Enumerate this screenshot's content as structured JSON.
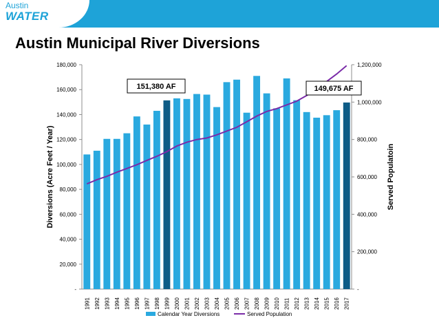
{
  "brand": {
    "line1": "Austin",
    "line2": "WATER"
  },
  "slide_title": "Austin Municipal River Diversions",
  "colors": {
    "bar": "#2aa9df",
    "bar_highlight": "#0e5c86",
    "line": "#7a2ba8",
    "header": "#1ea3d8"
  },
  "chart_data": {
    "type": "bar",
    "title": "",
    "ylabel": "Diversions (Acre Feet / Year)",
    "y2label": "Served Populatoin",
    "categories": [
      "1991",
      "1992",
      "1993",
      "1994",
      "1995",
      "1996",
      "1997",
      "1998",
      "1999",
      "2000",
      "2001",
      "2002",
      "2003",
      "2004",
      "2005",
      "2006",
      "2007",
      "2008",
      "2009",
      "2010",
      "2011",
      "2012",
      "2013",
      "2014",
      "2015",
      "2016",
      "2017"
    ],
    "ylim": [
      0,
      180000
    ],
    "y2lim": [
      0,
      1200000
    ],
    "yticks": [
      "-",
      "20,000",
      "40,000",
      "60,000",
      "80,000",
      "100,000",
      "120,000",
      "140,000",
      "160,000",
      "180,000"
    ],
    "y2ticks": [
      "-",
      "200,000",
      "400,000",
      "600,000",
      "800,000",
      "1,000,000",
      "1,200,000"
    ],
    "series": [
      {
        "name": "Calendar Year Diversions",
        "axis": "left",
        "values": [
          108000,
          111000,
          120500,
          120500,
          125000,
          138500,
          132000,
          143000,
          151380,
          153000,
          152500,
          156500,
          156000,
          146000,
          166000,
          168000,
          141500,
          171000,
          157000,
          145000,
          169000,
          151500,
          142000,
          137500,
          139500,
          143500,
          149675
        ],
        "highlight": [
          "1999",
          "2017"
        ]
      },
      {
        "name": "Served Population",
        "axis": "right",
        "values": [
          563000,
          585000,
          603000,
          625000,
          645000,
          665000,
          688000,
          710000,
          735000,
          765000,
          785000,
          800000,
          808000,
          825000,
          845000,
          865000,
          895000,
          925000,
          950000,
          965000,
          985000,
          1005000,
          1035000,
          1070000,
          1110000,
          1150000,
          1195000
        ]
      }
    ],
    "annotations": [
      {
        "text": "151,380 AF",
        "category": "1999"
      },
      {
        "text": "149,675 AF",
        "category": "2017"
      }
    ],
    "legend_position": "bottom",
    "grid": false
  }
}
